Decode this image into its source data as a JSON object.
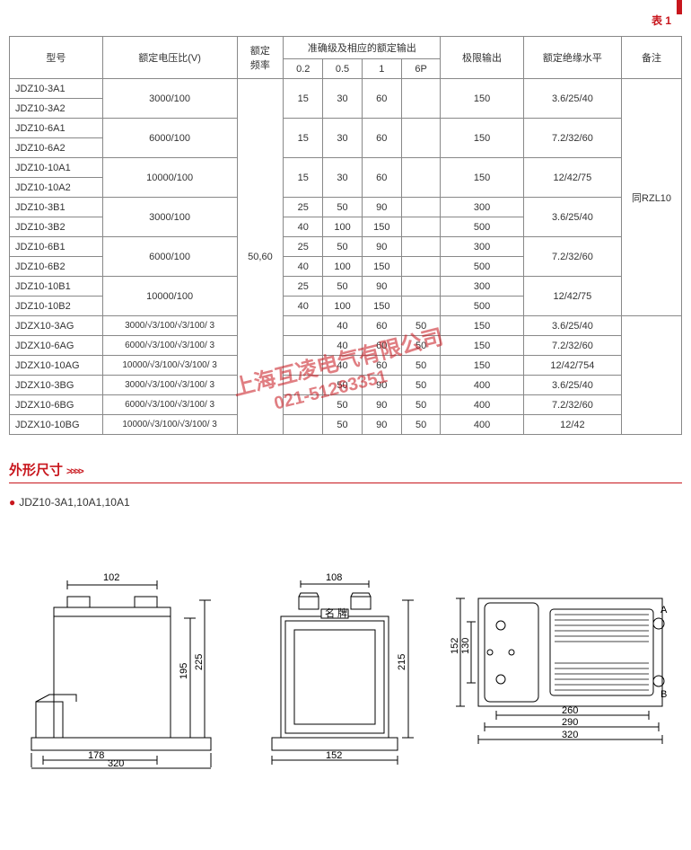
{
  "table_label": "表 1",
  "headers": {
    "model": "型号",
    "voltage": "额定电压比(V)",
    "freq": "额定\n频率",
    "accuracy": "准确级及相应的额定输出",
    "limit": "极限输出",
    "insulation": "额定绝缘水平",
    "remarks": "备注",
    "sub": [
      "0.2",
      "0.5",
      "1",
      "6P"
    ]
  },
  "freq_value": "50,60",
  "remarks_value": "同RZL10",
  "group_a": [
    {
      "models": [
        "JDZ10-3A1",
        "JDZ10-3A2"
      ],
      "volt": "3000/100",
      "vals": [
        "15",
        "30",
        "60",
        ""
      ],
      "limit": "150",
      "ins": "3.6/25/40"
    },
    {
      "models": [
        "JDZ10-6A1",
        "JDZ10-6A2"
      ],
      "volt": "6000/100",
      "vals": [
        "15",
        "30",
        "60",
        ""
      ],
      "limit": "150",
      "ins": "7.2/32/60"
    },
    {
      "models": [
        "JDZ10-10A1",
        "JDZ10-10A2"
      ],
      "volt": "10000/100",
      "vals": [
        "15",
        "30",
        "60",
        ""
      ],
      "limit": "150",
      "ins": "12/42/75"
    }
  ],
  "group_b": [
    {
      "models": [
        "JDZ10-3B1",
        "JDZ10-3B2"
      ],
      "volt": "3000/100",
      "ins": "3.6/25/40",
      "sub": [
        {
          "vals": [
            "25",
            "50",
            "90",
            ""
          ],
          "limit": "300"
        },
        {
          "vals": [
            "40",
            "100",
            "150",
            ""
          ],
          "limit": "500"
        }
      ]
    },
    {
      "models": [
        "JDZ10-6B1",
        "JDZ10-6B2"
      ],
      "volt": "6000/100",
      "ins": "7.2/32/60",
      "sub": [
        {
          "vals": [
            "25",
            "50",
            "90",
            ""
          ],
          "limit": "300"
        },
        {
          "vals": [
            "40",
            "100",
            "150",
            ""
          ],
          "limit": "500"
        }
      ]
    },
    {
      "models": [
        "JDZ10-10B1",
        "JDZ10-10B2"
      ],
      "volt": "10000/100",
      "ins": "12/42/75",
      "sub": [
        {
          "vals": [
            "25",
            "50",
            "90",
            ""
          ],
          "limit": "300"
        },
        {
          "vals": [
            "40",
            "100",
            "150",
            ""
          ],
          "limit": "500"
        }
      ]
    }
  ],
  "group_c": [
    {
      "model": "JDZX10-3AG",
      "volt": "3000/√3/100/√3/100/ 3",
      "vals": [
        "",
        "40",
        "60",
        "50"
      ],
      "limit": "150",
      "ins": "3.6/25/40"
    },
    {
      "model": "JDZX10-6AG",
      "volt": "6000/√3/100/√3/100/ 3",
      "vals": [
        "",
        "40",
        "60",
        "50"
      ],
      "limit": "150",
      "ins": "7.2/32/60"
    },
    {
      "model": "JDZX10-10AG",
      "volt": "10000/√3/100/√3/100/ 3",
      "vals": [
        "",
        "40",
        "60",
        "50"
      ],
      "limit": "150",
      "ins": "12/42/754"
    },
    {
      "model": "JDZX10-3BG",
      "volt": "3000/√3/100/√3/100/ 3",
      "vals": [
        "",
        "50",
        "90",
        "50"
      ],
      "limit": "400",
      "ins": "3.6/25/40"
    },
    {
      "model": "JDZX10-6BG",
      "volt": "6000/√3/100/√3/100/ 3",
      "vals": [
        "",
        "50",
        "90",
        "50"
      ],
      "limit": "400",
      "ins": "7.2/32/60"
    },
    {
      "model": "JDZX10-10BG",
      "volt": "10000/√3/100/√3/100/ 3",
      "vals": [
        "",
        "50",
        "90",
        "50"
      ],
      "limit": "400",
      "ins": "12/42"
    }
  ],
  "section_title": "外形尺寸",
  "subtitle": "JDZ10-3A1,10A1,10A1",
  "watermark": {
    "line1": "上海互凌电气有限公司",
    "line2": "021-51263351"
  },
  "dims": {
    "view1": {
      "d102": "102",
      "d178": "178",
      "d320": "320",
      "d195": "195",
      "d225": "225"
    },
    "view2": {
      "d108": "108",
      "d152": "152",
      "d215": "215",
      "name": "名 牌"
    },
    "view3": {
      "d130": "130",
      "d152": "152",
      "d260": "260",
      "d290": "290",
      "d320": "320",
      "a": "A",
      "b": "B"
    }
  }
}
